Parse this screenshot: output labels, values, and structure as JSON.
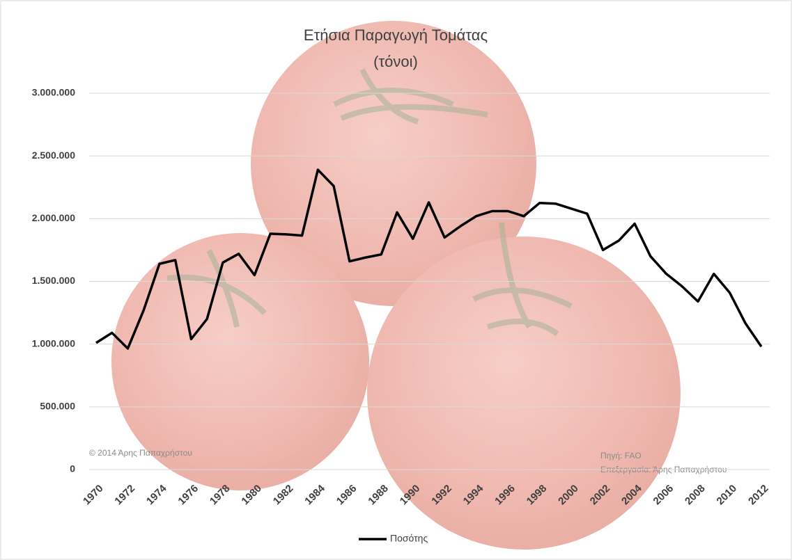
{
  "chart_data": {
    "type": "line",
    "title": "Ετήσια Παραγωγή Τομάτας",
    "subtitle": "(τόνοι)",
    "x": [
      1970,
      1971,
      1972,
      1973,
      1974,
      1975,
      1976,
      1977,
      1978,
      1979,
      1980,
      1981,
      1982,
      1983,
      1984,
      1985,
      1986,
      1987,
      1988,
      1989,
      1990,
      1991,
      1992,
      1993,
      1994,
      1995,
      1996,
      1997,
      1998,
      1999,
      2000,
      2001,
      2002,
      2003,
      2004,
      2005,
      2006,
      2007,
      2008,
      2009,
      2010,
      2011,
      2012
    ],
    "series": [
      {
        "name": "Ποσότης",
        "color": "#000000",
        "values": [
          1010000,
          1090000,
          965000,
          1270000,
          1640000,
          1670000,
          1040000,
          1200000,
          1650000,
          1720000,
          1550000,
          1880000,
          1875000,
          1865000,
          2390000,
          2260000,
          1660000,
          1690000,
          1715000,
          2050000,
          1840000,
          2130000,
          1850000,
          1940000,
          2020000,
          2060000,
          2060000,
          2020000,
          2125000,
          2120000,
          2080000,
          2040000,
          1750000,
          1825000,
          1960000,
          1700000,
          1560000,
          1460000,
          1340000,
          1560000,
          1410000,
          1165000,
          980000
        ]
      }
    ],
    "xlim": [
      1970,
      2012
    ],
    "xticks": [
      1970,
      1972,
      1974,
      1976,
      1978,
      1980,
      1982,
      1984,
      1986,
      1988,
      1990,
      1992,
      1994,
      1996,
      1998,
      2000,
      2002,
      2004,
      2006,
      2008,
      2010,
      2012
    ],
    "ylim": [
      0,
      3000000
    ],
    "yticks": [
      0,
      {
        "value": 500000,
        "label": "500.000"
      },
      {
        "value": 1000000,
        "label": "1.000.000"
      },
      {
        "value": 1500000,
        "label": "1.500.000"
      },
      {
        "value": 2000000,
        "label": "2.000.000"
      },
      {
        "value": 2500000,
        "label": "2.500.000"
      },
      {
        "value": 3000000,
        "label": "3.000.000"
      }
    ],
    "grid": true,
    "legend": "bottom",
    "annotations": [
      "© 2014 Άρης Παπαχρήστου",
      "Πηγή: FAO",
      "Επεξεργασία: Άρης Παπαχρήστου"
    ]
  }
}
